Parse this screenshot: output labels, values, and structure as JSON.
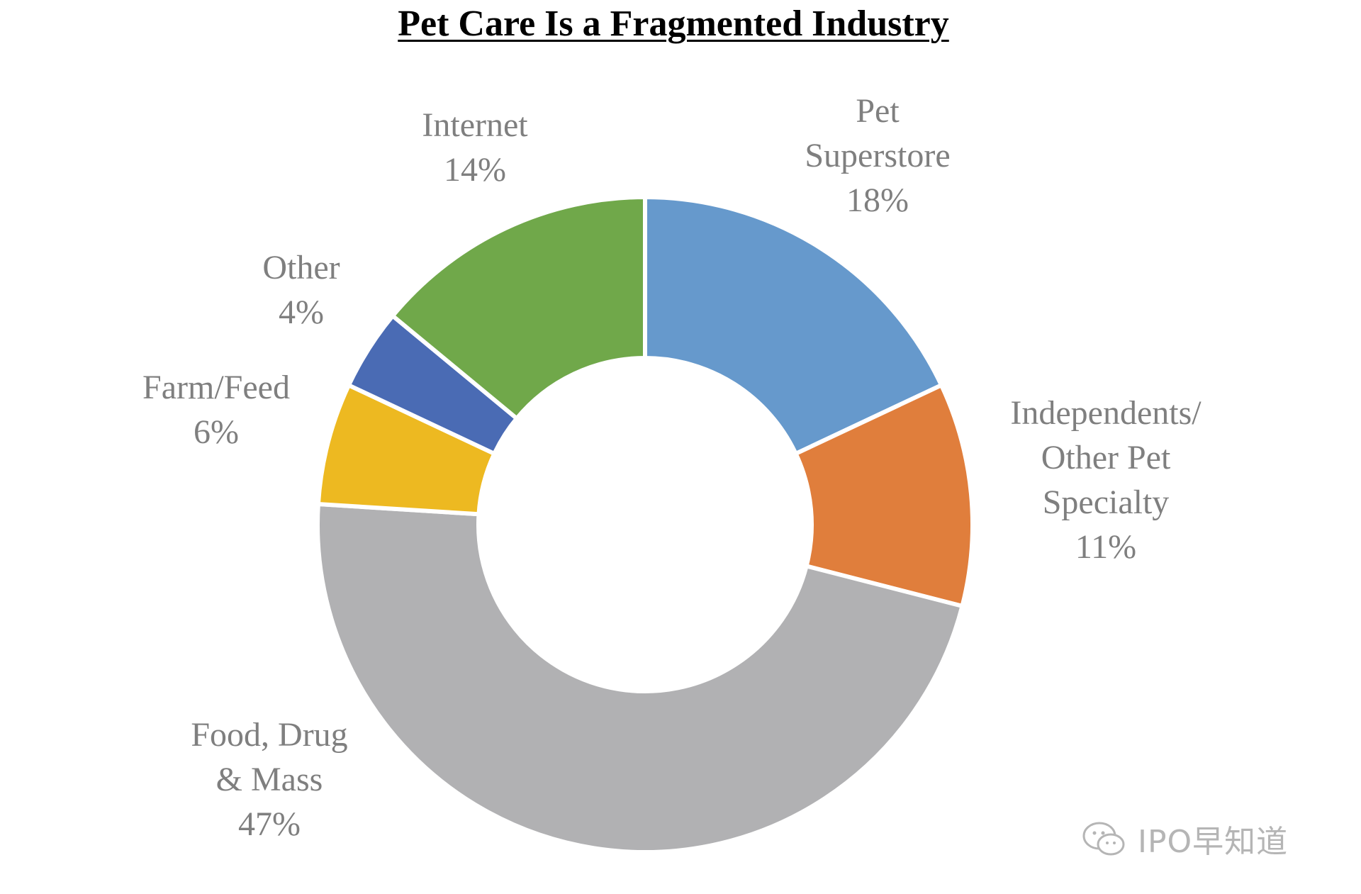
{
  "chart_data": {
    "type": "pie",
    "donut": true,
    "title": "Pet Care Is a Fragmented Industry",
    "slices": [
      {
        "label_lines": [
          "Pet",
          "Superstore"
        ],
        "value_label": "18%",
        "value": 18,
        "color": "#6699CC"
      },
      {
        "label_lines": [
          "Independents/",
          "Other Pet",
          "Specialty"
        ],
        "value_label": "11%",
        "value": 11,
        "color": "#E07E3C"
      },
      {
        "label_lines": [
          "Food, Drug",
          "& Mass"
        ],
        "value_label": "47%",
        "value": 47,
        "color": "#B1B1B3"
      },
      {
        "label_lines": [
          "Farm/Feed"
        ],
        "value_label": "6%",
        "value": 6,
        "color": "#EDB921"
      },
      {
        "label_lines": [
          "Other"
        ],
        "value_label": "4%",
        "value": 4,
        "color": "#4A6BB4"
      },
      {
        "label_lines": [
          "Internet"
        ],
        "value_label": "14%",
        "value": 14,
        "color": "#70A84A"
      }
    ],
    "legend": "none",
    "label_color": "#7f7f7f"
  },
  "watermark": {
    "text": "IPO早知道",
    "icon": "wechat-icon"
  }
}
